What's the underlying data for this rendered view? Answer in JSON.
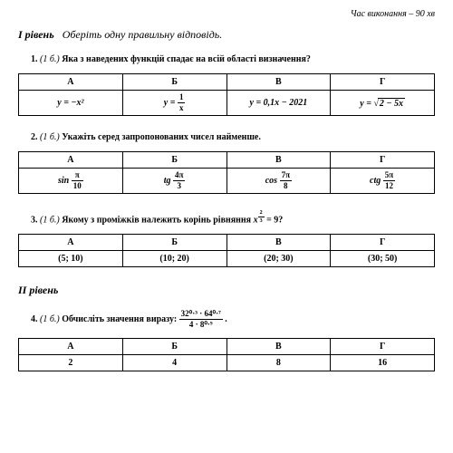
{
  "time_limit": "Час виконання – 90 хв",
  "level1": {
    "title": "I рівень",
    "instruction": "Оберіть одну правильну відповідь.",
    "q1": {
      "num": "1.",
      "pts": "(1 б.)",
      "text": "Яка з наведених функцій спадає на всій області визначення?",
      "headers": [
        "А",
        "Б",
        "В",
        "Г"
      ],
      "a": "y = −x²",
      "b_pre": "y = ",
      "b_num": "1",
      "b_den": "x",
      "c": "y = 0,1x − 2021",
      "d_pre": "y = √",
      "d_under": "2 − 5x"
    },
    "q2": {
      "num": "2.",
      "pts": "(1 б.)",
      "text": "Укажіть серед запропонованих чисел найменше.",
      "headers": [
        "А",
        "Б",
        "В",
        "Г"
      ],
      "a_fn": "sin",
      "a_num": "π",
      "a_den": "10",
      "b_fn": "tg",
      "b_num": "4π",
      "b_den": "3",
      "c_fn": "cos",
      "c_num": "7π",
      "c_den": "8",
      "d_fn": "ctg",
      "d_num": "5π",
      "d_den": "12"
    },
    "q3": {
      "num": "3.",
      "pts": "(1 б.)",
      "text_pre": "Якому з проміжків належить корінь рівняння ",
      "eq_base": "x",
      "eq_exp_num": "2",
      "eq_exp_den": "3",
      "eq_rhs": " = 9?",
      "headers": [
        "А",
        "Б",
        "В",
        "Г"
      ],
      "a": "(5; 10)",
      "b": "(10; 20)",
      "c": "(20; 30)",
      "d": "(30; 50)"
    }
  },
  "level2": {
    "title": "II рівень",
    "q4": {
      "num": "4.",
      "pts": "(1 б.)",
      "text_pre": "Обчисліть значення виразу: ",
      "frac_num": "32⁰·³ · 64⁰·⁷",
      "frac_den": "4 · 8⁰·⁹",
      "text_post": " .",
      "headers": [
        "А",
        "Б",
        "В",
        "Г"
      ],
      "a": "2",
      "b": "4",
      "c": "8",
      "d": "16"
    }
  }
}
